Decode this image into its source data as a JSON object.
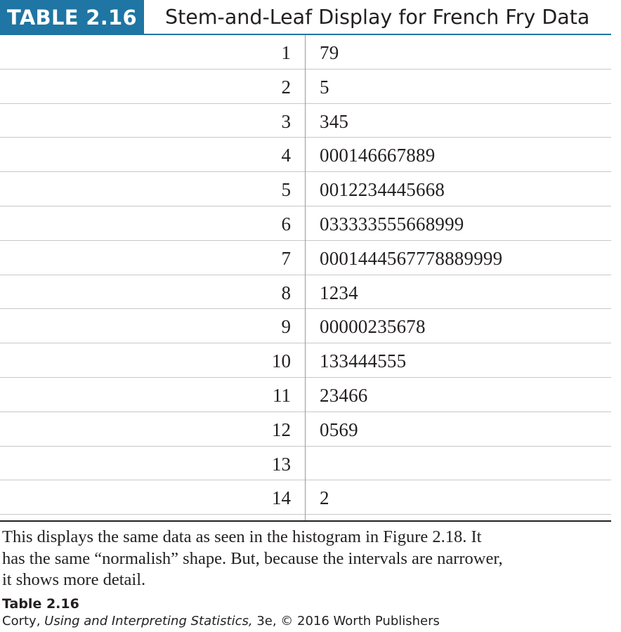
{
  "header": {
    "badge": "TABLE 2.16",
    "title": "Stem-and-Leaf Display for French Fry Data"
  },
  "rows": [
    {
      "stem": "1",
      "leaf": "79"
    },
    {
      "stem": "2",
      "leaf": "5"
    },
    {
      "stem": "3",
      "leaf": "345"
    },
    {
      "stem": "4",
      "leaf": "000146667889"
    },
    {
      "stem": "5",
      "leaf": "0012234445668"
    },
    {
      "stem": "6",
      "leaf": "033333555668999"
    },
    {
      "stem": "7",
      "leaf": "0001444567778889999"
    },
    {
      "stem": "8",
      "leaf": "1234"
    },
    {
      "stem": "9",
      "leaf": "00000235678"
    },
    {
      "stem": "10",
      "leaf": "133444555"
    },
    {
      "stem": "11",
      "leaf": "23466"
    },
    {
      "stem": "12",
      "leaf": "0569"
    },
    {
      "stem": "13",
      "leaf": ""
    },
    {
      "stem": "14",
      "leaf": "2"
    }
  ],
  "caption": {
    "line1": "This displays the same data as seen in the histogram in Figure 2.18. It",
    "line2": "has the same “normalish” shape. But, because the intervals are narrower,",
    "line3": "it shows more detail."
  },
  "source": {
    "label": "Table 2.16",
    "author": "Corty, ",
    "book": "Using and Interpreting Statistics,",
    "rest": " 3e, © 2016 Worth Publishers"
  },
  "colors": {
    "badge_bg": "#1f75a3",
    "text": "#231f20",
    "row_rule": "#c8c8c8"
  }
}
